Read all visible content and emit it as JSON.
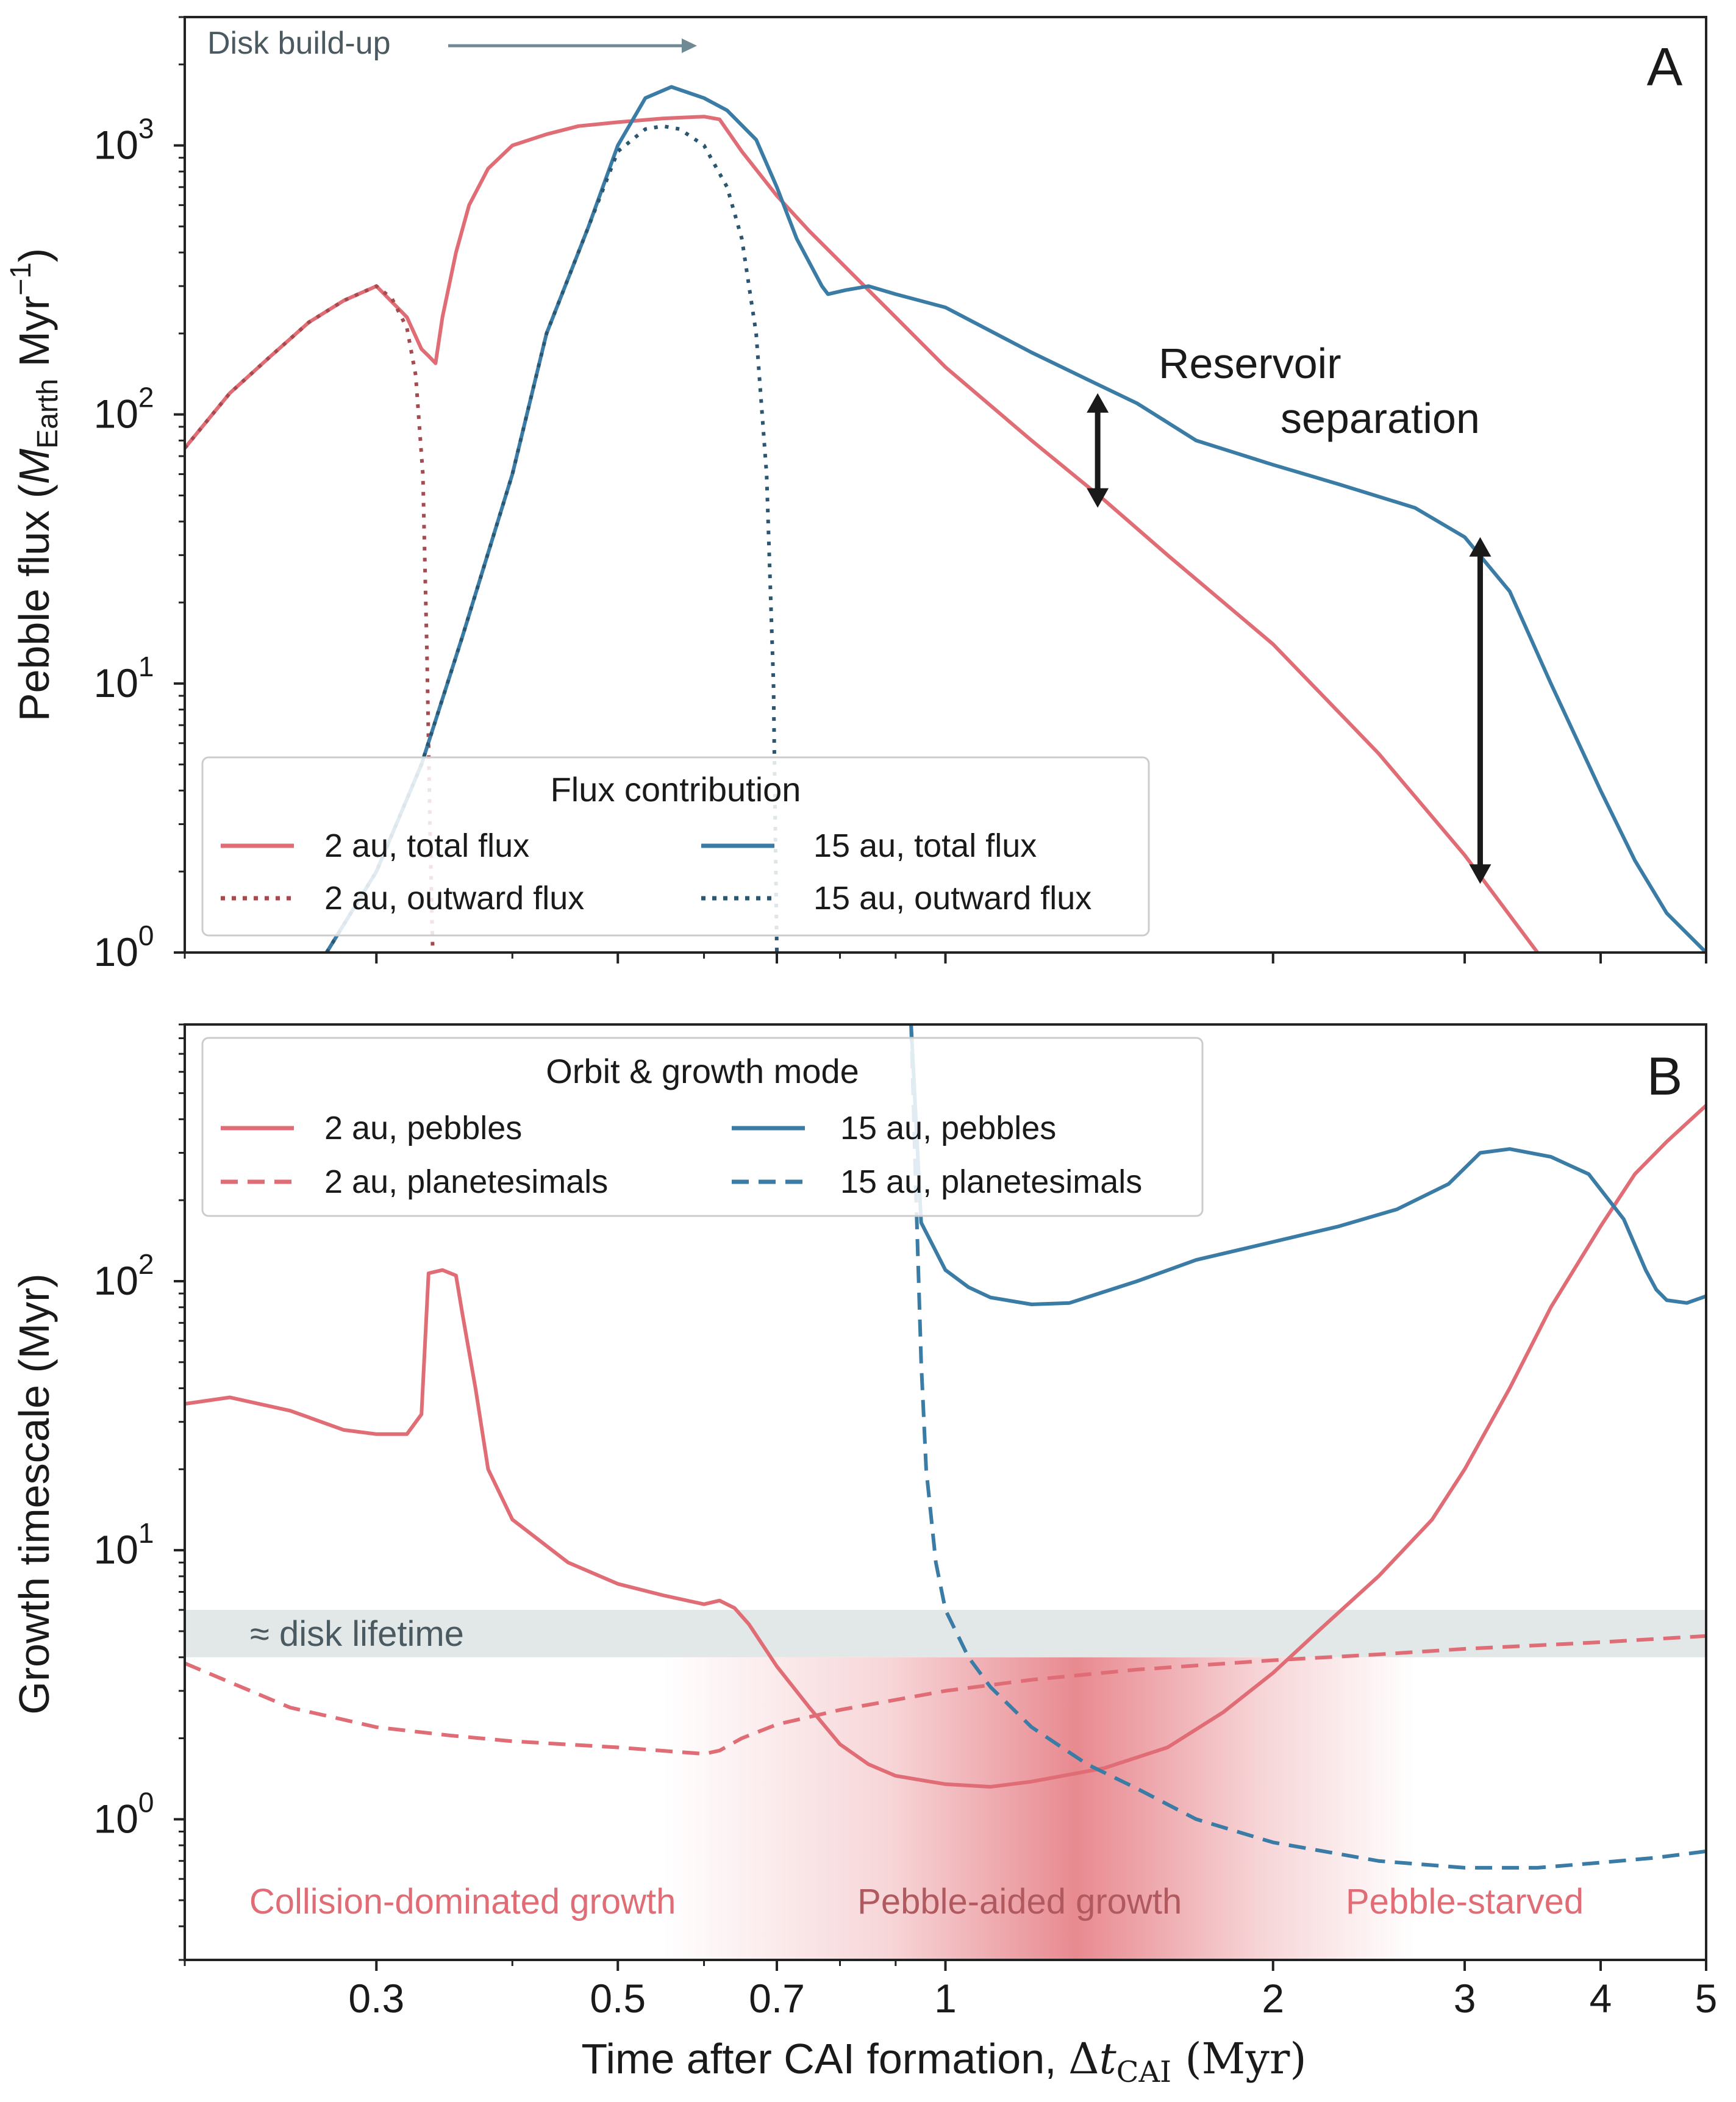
{
  "colors": {
    "red": "#e06c75",
    "blue": "#3a7ca5",
    "dark_red_dotted": "#a74a4f",
    "dark_blue_dotted": "#2a5670",
    "gray_band": "#e2e8e7",
    "gray_text": "#4a5a60",
    "arrow_gray": "#708a95",
    "black": "#1a1a1a",
    "regime_dark": "#b05a60"
  },
  "chart_data": [
    {
      "panel": "A",
      "type": "line",
      "panel_label": "A",
      "ylabel_prefix": "Pebble flux (",
      "ylabel_math_M": "M",
      "ylabel_math_sub": "Earth",
      "ylabel_suffix": " Myr",
      "ylabel_sup": "−1",
      "ylabel_close": ")",
      "xscale": "log",
      "yscale": "log",
      "xlim": [
        0.2,
        5
      ],
      "ylim": [
        1,
        3000
      ],
      "yticks": [
        {
          "value": 1,
          "base": "10",
          "exp": "0"
        },
        {
          "value": 10,
          "base": "10",
          "exp": "1"
        },
        {
          "value": 100,
          "base": "10",
          "exp": "2"
        },
        {
          "value": 1000,
          "base": "10",
          "exp": "3"
        }
      ],
      "annotation_top": "Disk build-up",
      "annotation_reservoir_1": "Reservoir",
      "annotation_reservoir_2": "separation",
      "legend": {
        "title": "Flux contribution",
        "entries": [
          "2 au, total flux",
          "2 au, outward flux",
          "15 au, total flux",
          "15 au, outward flux"
        ]
      },
      "series": [
        {
          "name": "2 au, total flux",
          "style": "solid",
          "color": "red",
          "x": [
            0.2,
            0.22,
            0.24,
            0.26,
            0.28,
            0.3,
            0.32,
            0.33,
            0.335,
            0.34,
            0.345,
            0.355,
            0.365,
            0.38,
            0.4,
            0.43,
            0.46,
            0.5,
            0.55,
            0.6,
            0.62,
            0.65,
            0.7,
            0.75,
            0.8,
            0.9,
            1.0,
            1.2,
            1.4,
            1.6,
            2.0,
            2.5,
            3.0,
            3.5
          ],
          "y": [
            75,
            120,
            165,
            220,
            265,
            300,
            230,
            175,
            165,
            155,
            230,
            400,
            600,
            820,
            1000,
            1100,
            1180,
            1220,
            1260,
            1280,
            1250,
            950,
            650,
            480,
            370,
            230,
            150,
            80,
            48,
            30,
            14,
            5.5,
            2.3,
            1
          ]
        },
        {
          "name": "2 au, outward flux",
          "style": "dotted",
          "color": "dark_red_dotted",
          "x": [
            0.2,
            0.22,
            0.24,
            0.26,
            0.28,
            0.3,
            0.31,
            0.32,
            0.326,
            0.331,
            0.334,
            0.336,
            0.338
          ],
          "y": [
            75,
            120,
            165,
            220,
            265,
            300,
            270,
            210,
            140,
            60,
            12,
            3,
            1
          ]
        },
        {
          "name": "15 au, total flux",
          "style": "solid",
          "color": "blue",
          "x": [
            0.27,
            0.3,
            0.33,
            0.36,
            0.4,
            0.43,
            0.47,
            0.5,
            0.53,
            0.56,
            0.6,
            0.63,
            0.67,
            0.7,
            0.73,
            0.77,
            0.78,
            0.81,
            0.85,
            0.9,
            1.0,
            1.2,
            1.35,
            1.5,
            1.7,
            2.0,
            2.3,
            2.7,
            3.0,
            3.3,
            3.6,
            4.0,
            4.3,
            4.6,
            5.0
          ],
          "y": [
            1,
            2,
            5,
            15,
            60,
            200,
            500,
            1000,
            1500,
            1650,
            1500,
            1350,
            1050,
            700,
            450,
            300,
            280,
            290,
            300,
            280,
            250,
            170,
            135,
            110,
            80,
            65,
            55,
            45,
            35,
            22,
            10,
            4,
            2.2,
            1.4,
            1
          ]
        },
        {
          "name": "15 au, outward flux",
          "style": "dotted",
          "color": "dark_blue_dotted",
          "x": [
            0.27,
            0.3,
            0.33,
            0.36,
            0.4,
            0.43,
            0.47,
            0.5,
            0.53,
            0.55,
            0.57,
            0.6,
            0.63,
            0.65,
            0.67,
            0.685,
            0.695,
            0.7
          ],
          "y": [
            1,
            2,
            5,
            15,
            60,
            200,
            500,
            950,
            1150,
            1180,
            1150,
            1000,
            700,
            450,
            200,
            60,
            10,
            1
          ]
        }
      ],
      "arrows": [
        {
          "x": 1.38,
          "y_top": 120,
          "y_bottom": 45
        },
        {
          "x": 3.1,
          "y_top": 35,
          "y_bottom": 1.8
        }
      ]
    },
    {
      "panel": "B",
      "type": "line",
      "panel_label": "B",
      "ylabel": "Growth timescale (Myr)",
      "xlabel_prefix": "Time after CAI formation, ",
      "xlabel_delta": "Δ",
      "xlabel_t": "t",
      "xlabel_sub": "CAI",
      "xlabel_suffix": " (Myr)",
      "xscale": "log",
      "yscale": "log",
      "xlim": [
        0.2,
        5
      ],
      "ylim": [
        0.3,
        900
      ],
      "xticks": [
        {
          "value": 0.3,
          "label": "0.3"
        },
        {
          "value": 0.5,
          "label": "0.5"
        },
        {
          "value": 0.7,
          "label": "0.7"
        },
        {
          "value": 1,
          "label": "1"
        },
        {
          "value": 2,
          "label": "2"
        },
        {
          "value": 3,
          "label": "3"
        },
        {
          "value": 4,
          "label": "4"
        },
        {
          "value": 5,
          "label": "5"
        }
      ],
      "yticks": [
        {
          "value": 1,
          "base": "10",
          "exp": "0"
        },
        {
          "value": 10,
          "base": "10",
          "exp": "1"
        },
        {
          "value": 100,
          "base": "10",
          "exp": "2"
        }
      ],
      "band": {
        "y_low": 4,
        "y_high": 6,
        "label": "≈ disk lifetime"
      },
      "regime_labels": [
        {
          "text": "Collision-dominated growth",
          "x": 0.36
        },
        {
          "text": "Pebble-aided growth",
          "x": 1.17
        },
        {
          "text": "Pebble-starved",
          "x": 3.0
        }
      ],
      "legend": {
        "title": "Orbit & growth mode",
        "entries": [
          "2 au, pebbles",
          "2 au, planetesimals",
          "15 au, pebbles",
          "15 au, planetesimals"
        ]
      },
      "series": [
        {
          "name": "2 au, pebbles",
          "style": "solid",
          "color": "red",
          "x": [
            0.2,
            0.22,
            0.25,
            0.28,
            0.3,
            0.32,
            0.33,
            0.335,
            0.345,
            0.355,
            0.36,
            0.37,
            0.38,
            0.4,
            0.45,
            0.5,
            0.55,
            0.6,
            0.62,
            0.64,
            0.66,
            0.7,
            0.75,
            0.8,
            0.85,
            0.9,
            1.0,
            1.1,
            1.2,
            1.4,
            1.6,
            1.8,
            2.0,
            2.2,
            2.5,
            2.8,
            3.0,
            3.3,
            3.6,
            4.0,
            4.3,
            4.6,
            5.0
          ],
          "y": [
            35,
            37,
            33,
            28,
            27,
            27,
            32,
            107,
            110,
            105,
            75,
            40,
            20,
            13,
            9,
            7.5,
            6.8,
            6.3,
            6.5,
            6.1,
            5.3,
            3.7,
            2.6,
            1.9,
            1.6,
            1.45,
            1.35,
            1.32,
            1.38,
            1.55,
            1.85,
            2.5,
            3.5,
            5,
            8,
            13,
            20,
            40,
            80,
            160,
            250,
            330,
            450
          ]
        },
        {
          "name": "2 au, planetesimals",
          "style": "dashed",
          "color": "red",
          "x": [
            0.2,
            0.25,
            0.3,
            0.35,
            0.4,
            0.5,
            0.6,
            0.62,
            0.65,
            0.7,
            0.8,
            1.0,
            1.2,
            1.5,
            2.0,
            2.5,
            3.0,
            4.0,
            5.0
          ],
          "y": [
            3.8,
            2.6,
            2.2,
            2.05,
            1.95,
            1.85,
            1.75,
            1.8,
            2.0,
            2.25,
            2.55,
            3.0,
            3.3,
            3.6,
            3.9,
            4.1,
            4.3,
            4.55,
            4.8
          ]
        },
        {
          "name": "15 au, pebbles",
          "style": "solid",
          "color": "blue",
          "x": [
            0.93,
            0.95,
            1.0,
            1.05,
            1.1,
            1.2,
            1.3,
            1.5,
            1.7,
            2.0,
            2.3,
            2.6,
            2.9,
            3.1,
            3.3,
            3.6,
            3.9,
            4.2,
            4.4,
            4.5,
            4.6,
            4.8,
            5.0
          ],
          "y": [
            900,
            165,
            110,
            95,
            87,
            82,
            83,
            100,
            120,
            140,
            160,
            185,
            230,
            300,
            310,
            290,
            250,
            170,
            110,
            93,
            85,
            83,
            88
          ]
        },
        {
          "name": "15 au, planetesimals",
          "style": "dashed",
          "color": "blue",
          "x": [
            0.93,
            0.94,
            0.95,
            0.96,
            0.98,
            1.0,
            1.05,
            1.1,
            1.2,
            1.35,
            1.5,
            1.7,
            2.0,
            2.5,
            3.0,
            3.5,
            4.0,
            4.5,
            5.0
          ],
          "y": [
            900,
            200,
            50,
            20,
            9,
            6,
            4.0,
            3.1,
            2.2,
            1.6,
            1.3,
            1.0,
            0.82,
            0.7,
            0.66,
            0.66,
            0.69,
            0.72,
            0.76
          ]
        }
      ]
    }
  ]
}
